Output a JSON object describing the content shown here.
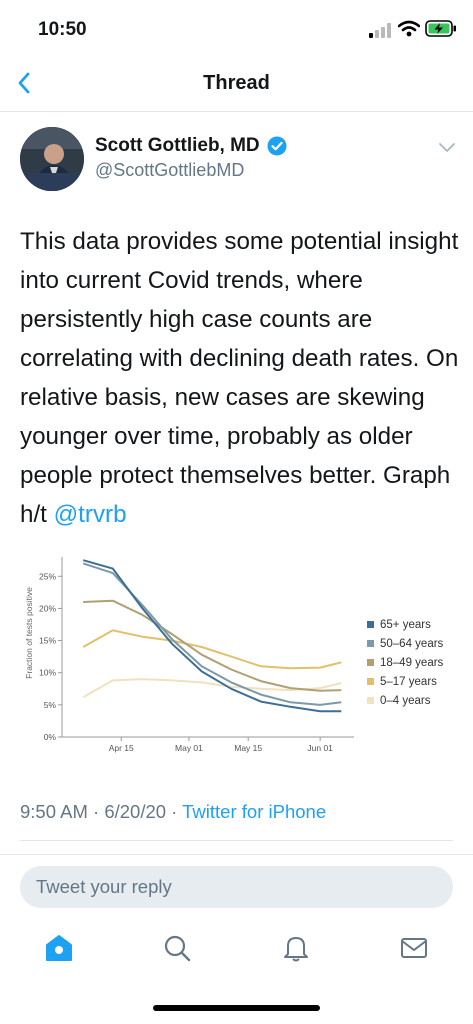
{
  "status": {
    "time": "10:50"
  },
  "nav": {
    "title": "Thread",
    "back_icon": "chevron-left-icon"
  },
  "tweet": {
    "author_name": "Scott Gottlieb, MD",
    "author_handle": "@ScottGottliebMD",
    "text_main": "This data provides some potential insight into current Covid trends, where persistently high case counts are correlating with declining death rates. On relative basis, new cases are skewing younger over time, probably as older people protect themselves better. Graph h/t ",
    "mention": "@trvrb",
    "timestamp": "9:50 AM · 6/20/20 · ",
    "source": "Twitter for iPhone"
  },
  "reply": {
    "placeholder": "Tweet your reply"
  },
  "tabs": [
    "home-icon",
    "search-icon",
    "notifications-icon",
    "messages-icon"
  ],
  "colors": {
    "accent": "#1da1f2",
    "secondary_text": "#657786",
    "divider": "#e1e8ed"
  },
  "chart_data": {
    "type": "line",
    "title": "",
    "xlabel": "",
    "ylabel": "Fraction of tests positive",
    "x": [
      "2020-04-06",
      "2020-04-13",
      "2020-04-20",
      "2020-04-27",
      "2020-05-04",
      "2020-05-11",
      "2020-05-18",
      "2020-05-25",
      "2020-06-01",
      "2020-06-06"
    ],
    "x_ticks": [
      "Apr 15",
      "May 01",
      "May 15",
      "Jun 01"
    ],
    "y_ticks": [
      "0%",
      "5%",
      "10%",
      "15%",
      "20%",
      "25%"
    ],
    "ylim": [
      0,
      28
    ],
    "grid": false,
    "legend_position": "right",
    "series": [
      {
        "name": "65+ years",
        "color": "#3d6f96",
        "values": [
          27.5,
          26.2,
          20.0,
          14.5,
          10.2,
          7.5,
          5.5,
          4.7,
          4.0,
          4.0
        ]
      },
      {
        "name": "50–64 years",
        "color": "#7b9aa6",
        "values": [
          27.0,
          25.5,
          20.5,
          15.2,
          11.0,
          8.5,
          6.6,
          5.4,
          5.0,
          5.4
        ]
      },
      {
        "name": "18–49 years",
        "color": "#b0a074",
        "values": [
          21.0,
          21.2,
          19.0,
          16.0,
          12.8,
          10.5,
          8.7,
          7.6,
          7.2,
          7.3
        ]
      },
      {
        "name": "5–17 years",
        "color": "#e2c06b",
        "values": [
          14.0,
          16.6,
          15.6,
          15.0,
          14.0,
          12.5,
          11.0,
          10.7,
          10.8,
          11.6
        ]
      },
      {
        "name": "0–4 years",
        "color": "#f0e2bd",
        "values": [
          6.2,
          8.8,
          9.0,
          8.8,
          8.5,
          7.8,
          7.5,
          7.3,
          7.6,
          8.4
        ]
      }
    ]
  }
}
